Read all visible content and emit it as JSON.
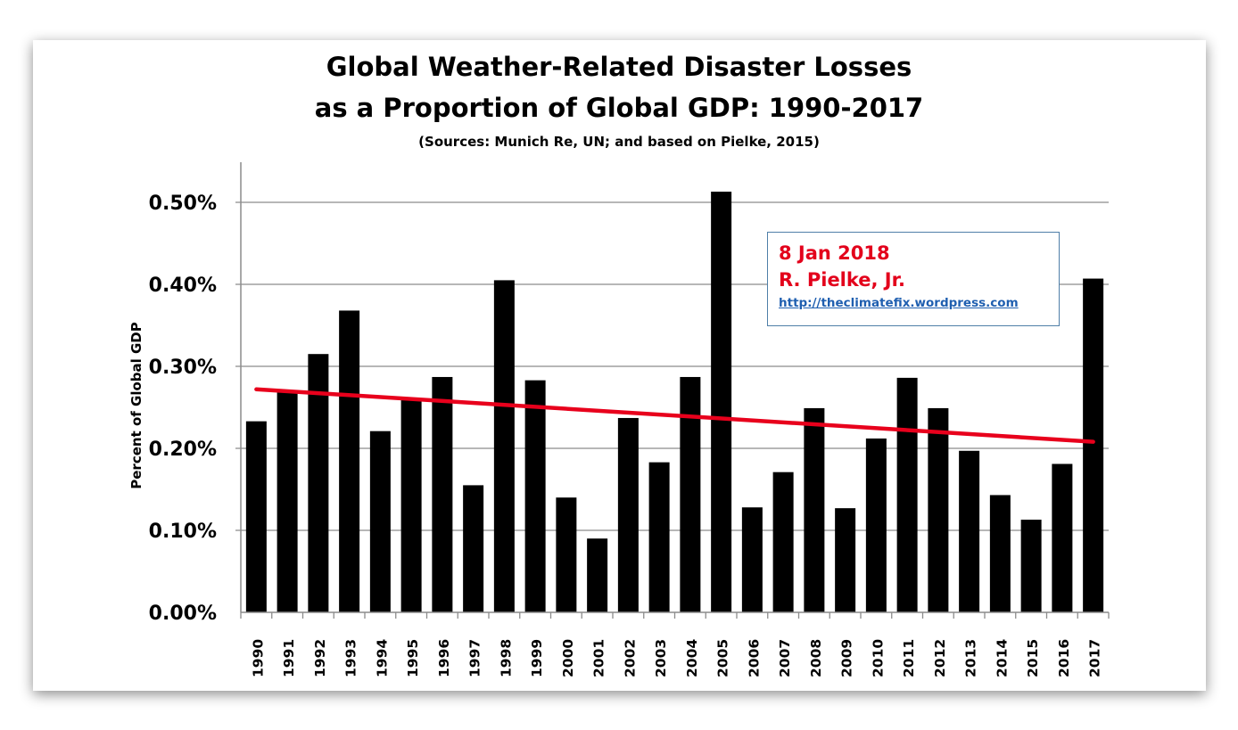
{
  "chart_data": {
    "type": "bar",
    "title": "Global Weather-Related Disaster Losses",
    "title_line2": "as a Proportion of Global GDP: 1990-2017",
    "subtitle": "(Sources: Munich Re, UN; and based on Pielke, 2015)",
    "xlabel": "",
    "ylabel": "Percent of Global GDP",
    "ylim": [
      0,
      0.5
    ],
    "y_unit": "%",
    "yticks": [
      "0.00%",
      "0.10%",
      "0.20%",
      "0.30%",
      "0.40%",
      "0.50%"
    ],
    "grid": true,
    "categories": [
      "1990",
      "1991",
      "1992",
      "1993",
      "1994",
      "1995",
      "1996",
      "1997",
      "1998",
      "1999",
      "2000",
      "2001",
      "2002",
      "2003",
      "2004",
      "2005",
      "2006",
      "2007",
      "2008",
      "2009",
      "2010",
      "2011",
      "2012",
      "2013",
      "2014",
      "2015",
      "2016",
      "2017"
    ],
    "values": [
      0.233,
      0.268,
      0.315,
      0.368,
      0.221,
      0.26,
      0.287,
      0.155,
      0.405,
      0.283,
      0.14,
      0.09,
      0.237,
      0.183,
      0.287,
      0.513,
      0.128,
      0.171,
      0.249,
      0.127,
      0.212,
      0.286,
      0.249,
      0.197,
      0.143,
      0.113,
      0.181,
      0.407
    ],
    "trendline": {
      "from": {
        "x": "1990",
        "y": 0.272
      },
      "to": {
        "x": "2017",
        "y": 0.208
      },
      "color": "#e8001c"
    },
    "bar_color": "#000000"
  },
  "annotation": {
    "date": "8 Jan 2018",
    "author": "R. Pielke, Jr.",
    "url": "http://theclimatefix.wordpress.com"
  }
}
